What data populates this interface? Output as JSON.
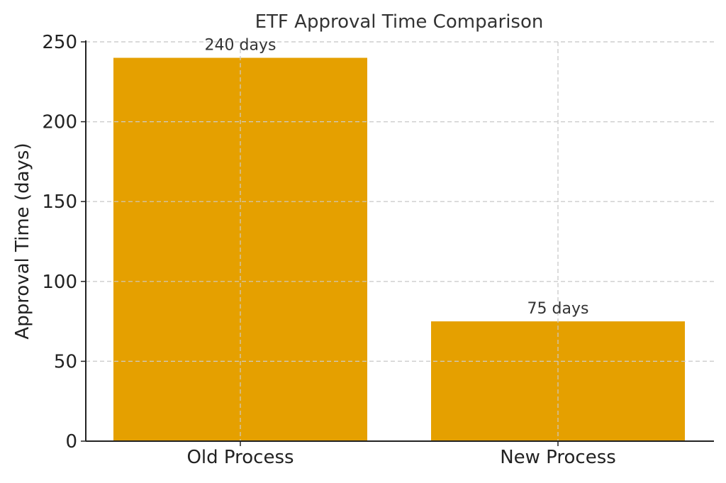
{
  "chart_data": {
    "type": "bar",
    "title": "ETF Approval Time Comparison",
    "xlabel": "",
    "ylabel": "Approval Time (days)",
    "categories": [
      "Old Process",
      "New Process"
    ],
    "values": [
      240,
      75
    ],
    "data_labels": [
      "240 days",
      "75 days"
    ],
    "ylim": [
      0,
      250
    ],
    "yticks": [
      0,
      50,
      100,
      150,
      200,
      250
    ],
    "grid": true,
    "legend": "none",
    "bar_color": "#E5A000"
  }
}
